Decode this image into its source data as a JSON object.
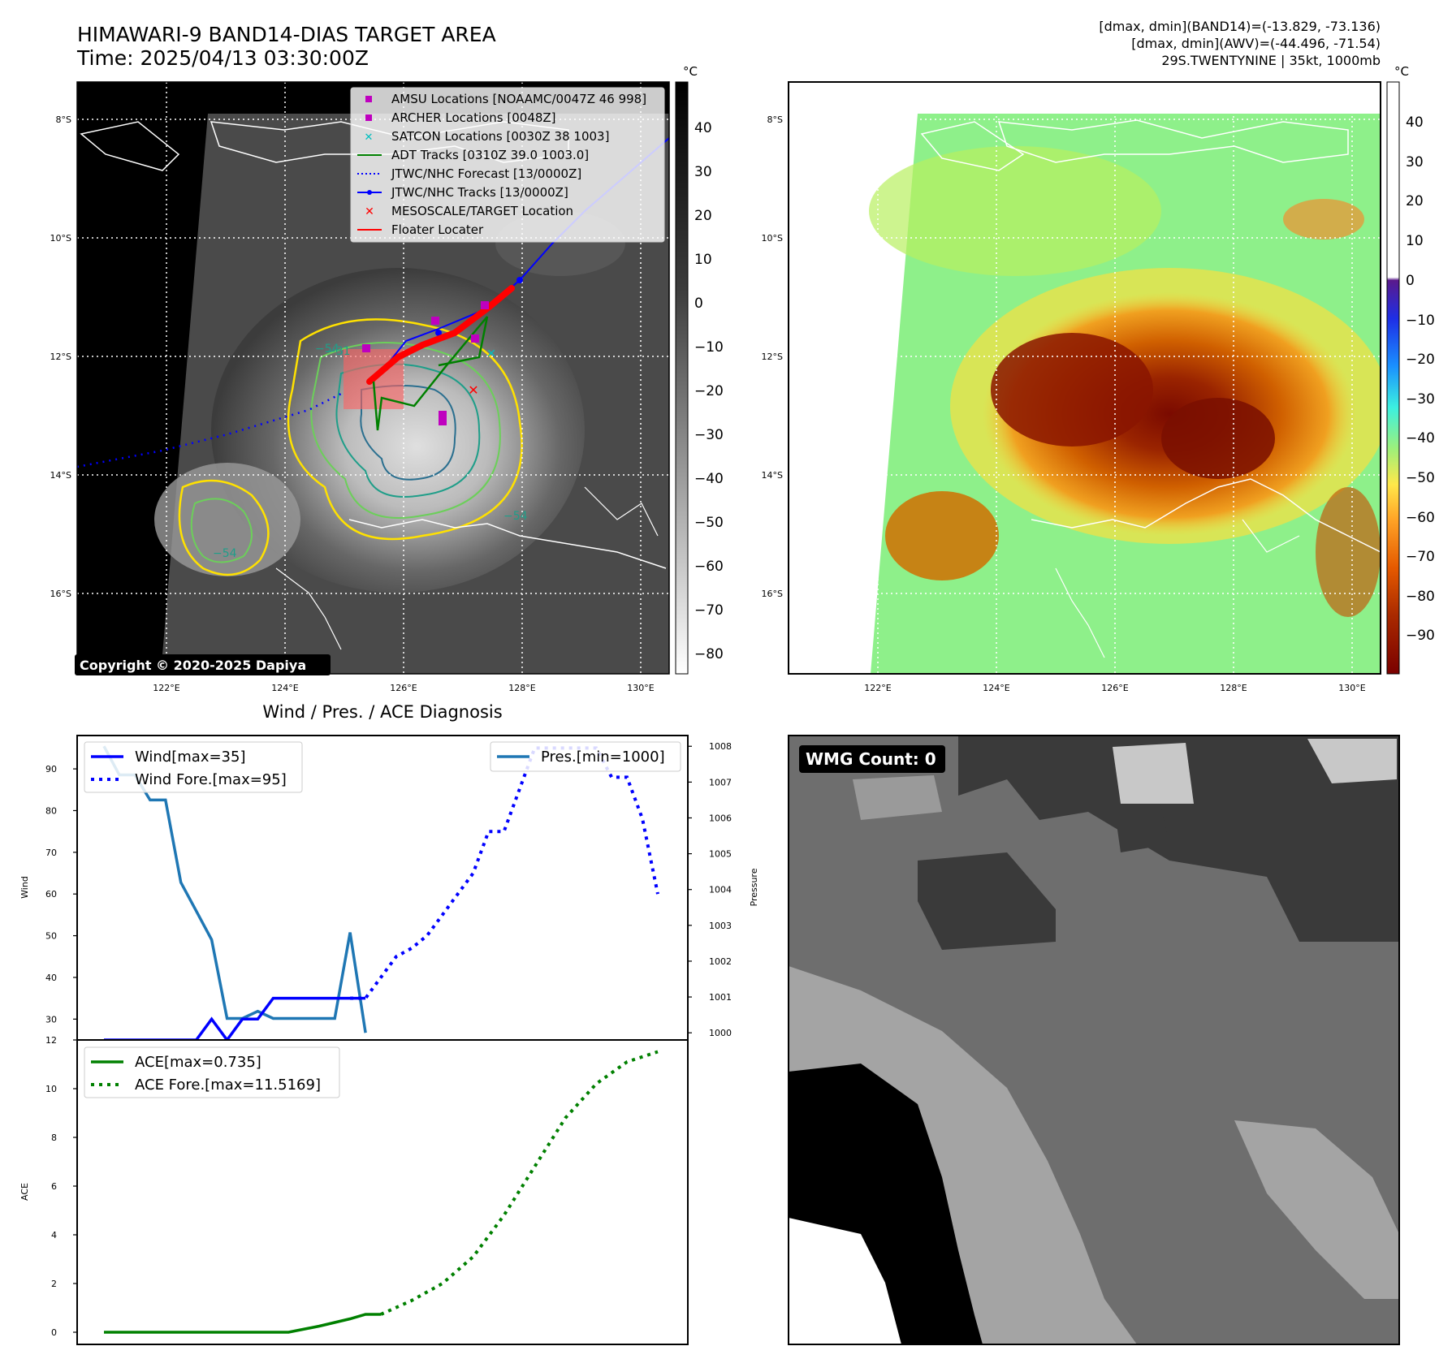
{
  "header": {
    "title": "HIMAWARI-9 BAND14-DIAS TARGET AREA",
    "time": "Time: 2025/04/13 03:30:00Z",
    "stats_band14": "[dmax, dmin](BAND14)=(-13.829, -73.136)",
    "stats_awv": "[dmax, dmin](AWV)=(-44.496, -71.54)",
    "storm": "29S.TWENTYNINE | 35kt, 1000mb"
  },
  "map_axes": {
    "lat_labels": [
      "8°S",
      "10°S",
      "12°S",
      "14°S",
      "16°S"
    ],
    "lon_labels": [
      "122°E",
      "124°E",
      "126°E",
      "128°E",
      "130°E"
    ]
  },
  "ir_panel": {
    "colorbar_unit": "°C",
    "colorbar_ticks": [
      "40",
      "30",
      "20",
      "10",
      "0",
      "−10",
      "−20",
      "−30",
      "−40",
      "−50",
      "−60",
      "−70",
      "−80"
    ],
    "contour_labels": [
      "−54",
      "−54",
      "−54",
      "−31"
    ],
    "copyright": "Copyright © 2020-2025 Dapiya",
    "legend": [
      {
        "label": "AMSU Locations [NOAAMC/0047Z 46 998]",
        "color": "#bf00bf"
      },
      {
        "label": "ARCHER Locations [0048Z]",
        "color": "#bf00bf"
      },
      {
        "label": "SATCON Locations [0030Z 38 1003]",
        "color": "#00bfbf"
      },
      {
        "label": "ADT Tracks [0310Z 39.0 1003.0]",
        "color": "#008000"
      },
      {
        "label": "JTWC/NHC Forecast [13/0000Z]",
        "color": "#0000ff"
      },
      {
        "label": "JTWC/NHC Tracks [13/0000Z]",
        "color": "#0000ff"
      },
      {
        "label": "MESOSCALE/TARGET Location",
        "color": "#ff0000"
      },
      {
        "label": "Floater Locater",
        "color": "#ff0000"
      }
    ]
  },
  "awv_panel": {
    "colorbar_unit": "°C",
    "colorbar_ticks": [
      "40",
      "30",
      "20",
      "10",
      "0",
      "−10",
      "−20",
      "−30",
      "−40",
      "−50",
      "−60",
      "−70",
      "−80",
      "−90"
    ]
  },
  "wmg_panel": {
    "badge": "WMG Count: 0"
  },
  "chart_data": [
    {
      "type": "line",
      "title": "Wind / Pres. / ACE Diagnosis",
      "xlabel": "",
      "ylabel": "Wind",
      "ylabel_right": "Pressure",
      "ylim": [
        25,
        98
      ],
      "ylim_right": [
        999.8,
        1008.3
      ],
      "yticks": [
        30,
        40,
        50,
        60,
        70,
        80,
        90
      ],
      "yticks_right": [
        1000,
        1001,
        1002,
        1003,
        1004,
        1005,
        1006,
        1007,
        1008
      ],
      "x": [
        0,
        1,
        2,
        3,
        4,
        5,
        6,
        7,
        8,
        9,
        10,
        11,
        12,
        13,
        14,
        15,
        16,
        17,
        18,
        19,
        20,
        21,
        22,
        23,
        24,
        25,
        26,
        27,
        28,
        29,
        30,
        31,
        32,
        33,
        34,
        35,
        36
      ],
      "series": [
        {
          "name": "Wind[max=35]",
          "style": "solid",
          "color": "#0000ff",
          "x": [
            0,
            1,
            2,
            3,
            4,
            5,
            6,
            7,
            8,
            9,
            10,
            11,
            12,
            13,
            14,
            15,
            16,
            17
          ],
          "values": [
            25,
            25,
            25,
            25,
            25,
            25,
            25,
            30,
            25,
            30,
            30,
            35,
            35,
            35,
            35,
            35,
            35,
            35
          ]
        },
        {
          "name": "Wind Fore.[max=95]",
          "style": "dotted",
          "color": "#0000ff",
          "x": [
            16,
            17,
            18,
            19,
            20,
            21,
            22,
            23,
            24,
            25,
            26,
            27,
            28,
            29,
            30,
            31,
            32,
            33,
            34,
            35,
            36
          ],
          "values": [
            35,
            35,
            40,
            45,
            47,
            50,
            55,
            60,
            65,
            75,
            75,
            85,
            95,
            95,
            95,
            95,
            95,
            88,
            88,
            78,
            60
          ]
        },
        {
          "name": "Pres.[min=1000]",
          "style": "solid",
          "color": "#1f77b4",
          "axis": "right",
          "x": [
            0,
            1,
            2,
            3,
            4,
            5,
            6,
            7,
            8,
            9,
            10,
            11,
            12,
            13,
            14,
            15,
            16,
            17
          ],
          "values": [
            1008,
            1007.2,
            1007.2,
            1006.5,
            1006.5,
            1004.2,
            1003.4,
            1002.6,
            1000.4,
            1000.4,
            1000.6,
            1000.4,
            1000.4,
            1000.4,
            1000.4,
            1000.4,
            1002.8,
            1000
          ]
        }
      ]
    },
    {
      "type": "line",
      "ylabel": "ACE",
      "ylim": [
        -0.5,
        12
      ],
      "yticks": [
        0,
        2,
        4,
        6,
        8,
        10,
        12
      ],
      "series": [
        {
          "name": "ACE[max=0.735]",
          "style": "solid",
          "color": "#008000",
          "x": [
            0,
            2,
            4,
            6,
            8,
            10,
            12,
            14,
            16,
            17,
            18
          ],
          "values": [
            0,
            0,
            0,
            0,
            0,
            0,
            0,
            0.25,
            0.55,
            0.735,
            0.735
          ]
        },
        {
          "name": "ACE Fore.[max=11.5169]",
          "style": "dotted",
          "color": "#008000",
          "x": [
            18,
            20,
            22,
            24,
            26,
            28,
            30,
            32,
            34,
            36
          ],
          "values": [
            0.735,
            1.3,
            2.0,
            3.1,
            4.8,
            6.8,
            8.8,
            10.2,
            11.1,
            11.5169
          ]
        }
      ]
    }
  ]
}
